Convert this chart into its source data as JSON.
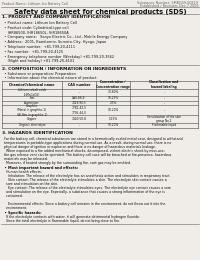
{
  "bg_color": "#f0ede8",
  "header_left": "Product Name: Lithium Ion Battery Cell",
  "header_right_line1": "Substance Number: SMBG49-00819",
  "header_right_line2": "Established / Revision: Dec.7.2009",
  "title": "Safety data sheet for chemical products (SDS)",
  "section1_title": "1. PRODUCT AND COMPANY IDENTIFICATION",
  "section1_lines": [
    "  • Product name: Lithium Ion Battery Cell",
    "  • Product code: Cylindrical-type cell",
    "     IHR86500, IHR18650L, IHR18650A",
    "  • Company name:   Sanyo Electric Co., Ltd., Mobile Energy Company",
    "  • Address:  2001, Kamitomio, Sumoto-City, Hyogo, Japan",
    "  • Telephone number:  +81-799-20-4111",
    "  • Fax number:  +81-799-20-4125",
    "  • Emergency telephone number (Weekday) +81-799-20-3562",
    "     (Night and holiday) +81-799-20-4101"
  ],
  "section2_title": "2. COMPOSITION / INFORMATION ON INGREDIENTS",
  "section2_lines": [
    "  • Substance or preparation: Preparation",
    "  • Information about the chemical nature of product:"
  ],
  "table_header_row": [
    "Chemical/chemical name",
    "CAS number",
    "Concentration /\nConcentration range",
    "Classification and\nhazard labeling"
  ],
  "table_subheader": "Several name",
  "table_rows": [
    [
      "Lithium cobalt oxide\n(LiMnCoO2)",
      "-",
      "30-60%",
      "-"
    ],
    [
      "Iron",
      "CAS-86-9",
      "10-25%",
      "-"
    ],
    [
      "Aluminium",
      "7429-90-5",
      "2-5%",
      "-"
    ],
    [
      "Graphite\n(Metal in graphite-1)\n(Al-film in graphite-1)",
      "7782-42-5\n7705-44-0",
      "10-20%",
      "-"
    ],
    [
      "Copper",
      "7440-50-8",
      "5-15%",
      "Sensitization of the skin\ngroup No.2"
    ],
    [
      "Organic electrolyte",
      "-",
      "10-20%",
      "Flammable liquid"
    ]
  ],
  "section3_title": "3. HAZARDS IDENTIFICATION",
  "section3_para": [
    "  For the battery cell, chemical substances are stored in a hermetically sealed metal case, designed to withstand",
    "  temperatures in portable-type applications during normal use. As a result, during normal use, there is no",
    "  physical danger of ignition or explosion and there is no danger of hazardous materials leakage.",
    "    When exposed to a fire added mechanical shocks, decomposed, violent electric shock by miss-use,",
    "  the gas release vent can be operated. The battery cell case will be breached or fire-presence, hazardous",
    "  materials may be released.",
    "    Moreover, if heated strongly by the surrounding fire, soot gas may be emitted."
  ],
  "section3_sub1_title": "  • Most important hazard and effects:",
  "section3_sub1_lines": [
    "    Human health effects:",
    "      Inhalation: The release of the electrolyte has an anesthesia action and stimulates in respiratory tract.",
    "      Skin contact: The release of the electrolyte stimulates a skin. The electrolyte skin contact causes a",
    "    sore and stimulation on the skin.",
    "      Eye contact: The release of the electrolyte stimulates eyes. The electrolyte eye contact causes a sore",
    "    and stimulation on the eye. Especially, a substance that causes a strong inflammation of the eye is",
    "    contained.",
    "",
    "      Environmental effects: Since a battery cell remains in the environment, do not throw out it into the",
    "    environment."
  ],
  "section3_sub2_title": "  • Specific hazards:",
  "section3_sub2_lines": [
    "    If the electrolyte contacts with water, it will generate detrimental hydrogen fluoride.",
    "    Since the total electrolyte is flammable liquid, do not bring close to fire."
  ]
}
